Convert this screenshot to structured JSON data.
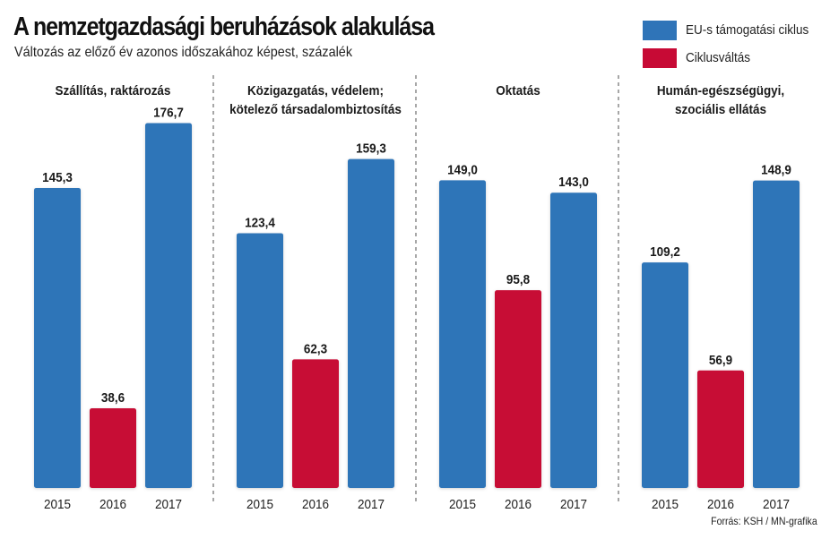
{
  "header": {
    "title": "A nemzetgazdasági beruházások alakulása",
    "subtitle": "Változás az előző év azonos időszakához képest, százalék"
  },
  "legend": [
    {
      "label": "EU-s támogatási ciklus",
      "color": "#2f74b8"
    },
    {
      "label": "Ciklusváltás",
      "color": "#c70a35"
    }
  ],
  "source": "Forrás: KSH / MN-grafika",
  "chart_data": {
    "type": "bar",
    "title": "A nemzetgazdasági beruházások alakulása",
    "subtitle": "Változás az előző év azonos időszakához képest, százalék",
    "xlabel": "",
    "ylabel": "",
    "ylim": [
      0,
      180
    ],
    "grid": false,
    "legend_position": "top-right",
    "categories": [
      "2015",
      "2016",
      "2017"
    ],
    "series_colors": {
      "EU-s támogatási ciklus": "#2f74b8",
      "Ciklusváltás": "#c70a35"
    },
    "panels": [
      {
        "title_lines": [
          "Szállítás, raktározás"
        ],
        "values": [
          145.3,
          38.6,
          176.7
        ],
        "labels": [
          "145,3",
          "38,6",
          "176,7"
        ],
        "series": [
          "EU-s támogatási ciklus",
          "Ciklusváltás",
          "EU-s támogatási ciklus"
        ]
      },
      {
        "title_lines": [
          "Közigazgatás, védelem;",
          "kötelező társadalombiztosítás"
        ],
        "values": [
          123.4,
          62.3,
          159.3
        ],
        "labels": [
          "123,4",
          "62,3",
          "159,3"
        ],
        "series": [
          "EU-s támogatási ciklus",
          "Ciklusváltás",
          "EU-s támogatási ciklus"
        ]
      },
      {
        "title_lines": [
          "Oktatás"
        ],
        "values": [
          149.0,
          95.8,
          143.0
        ],
        "labels": [
          "149,0",
          "95,8",
          "143,0"
        ],
        "series": [
          "EU-s támogatási ciklus",
          "Ciklusváltás",
          "EU-s támogatási ciklus"
        ]
      },
      {
        "title_lines": [
          "Humán-egészségügyi,",
          "szociális ellátás"
        ],
        "values": [
          109.2,
          56.9,
          148.9
        ],
        "labels": [
          "109,2",
          "56,9",
          "148,9"
        ],
        "series": [
          "EU-s támogatási ciklus",
          "Ciklusváltás",
          "EU-s támogatási ciklus"
        ]
      }
    ]
  }
}
